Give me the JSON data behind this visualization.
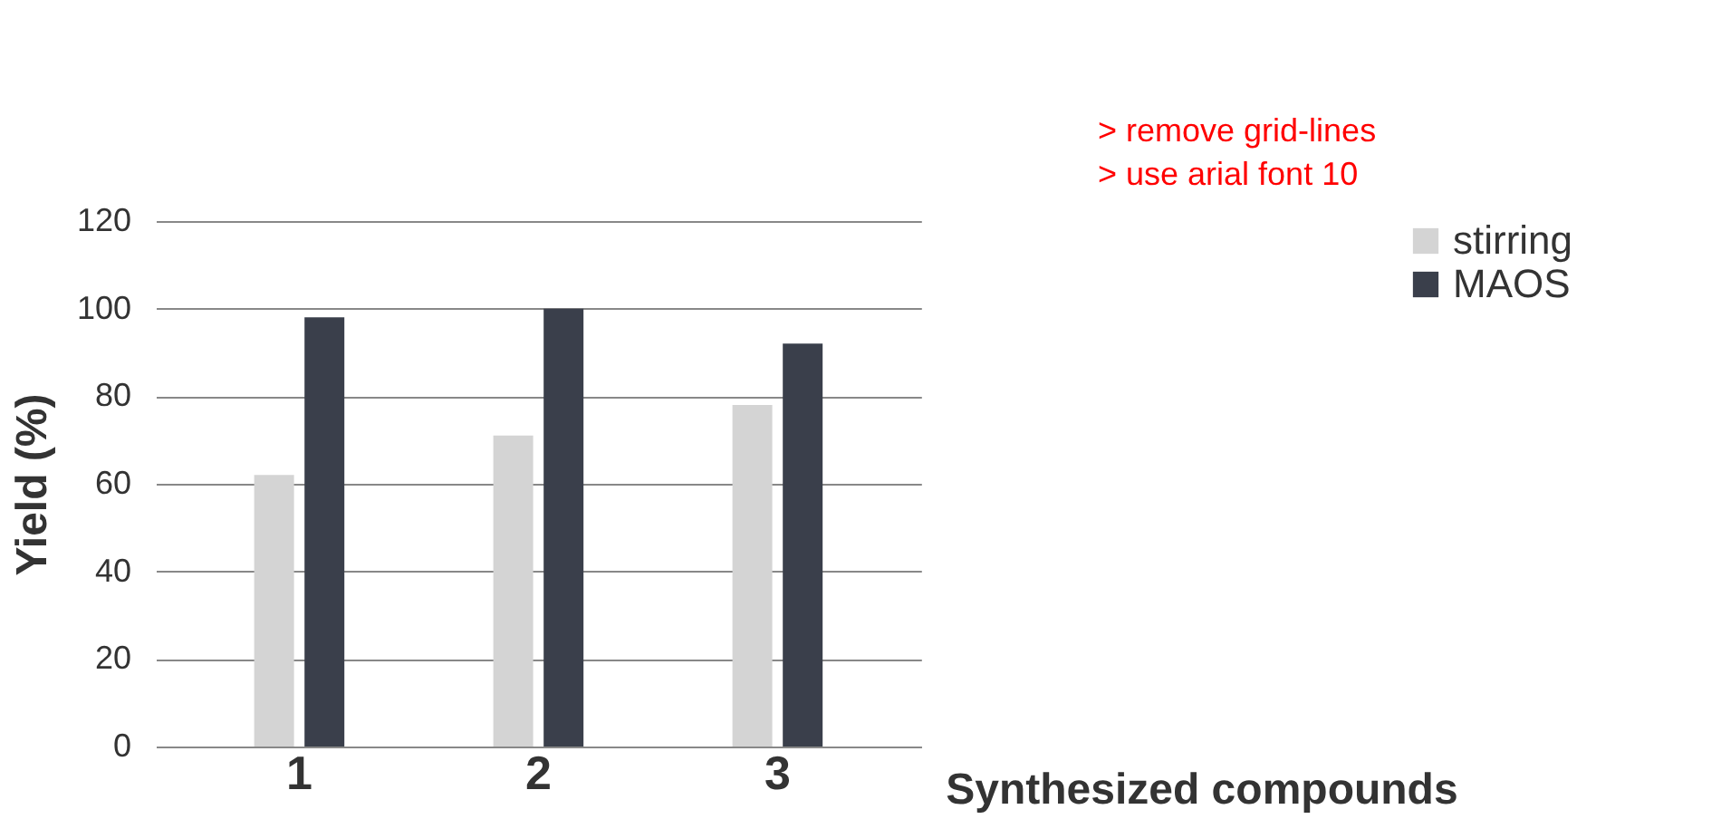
{
  "chart_data": {
    "type": "bar",
    "xlabel": "Synthesized compounds",
    "ylabel": "Yield (%)",
    "categories": [
      "1",
      "2",
      "3"
    ],
    "series": [
      {
        "name": "stirring",
        "color": "#d4d4d4",
        "values": [
          62,
          71,
          78
        ]
      },
      {
        "name": "MAOS",
        "color": "#3a3f4b",
        "values": [
          98,
          100,
          92
        ]
      }
    ],
    "ylim": [
      0,
      120
    ],
    "yticks": [
      0,
      20,
      40,
      60,
      80,
      100,
      120
    ],
    "grid": "y",
    "legend": "right",
    "annotations": [
      "> remove grid-lines",
      "> use arial font 10"
    ]
  }
}
